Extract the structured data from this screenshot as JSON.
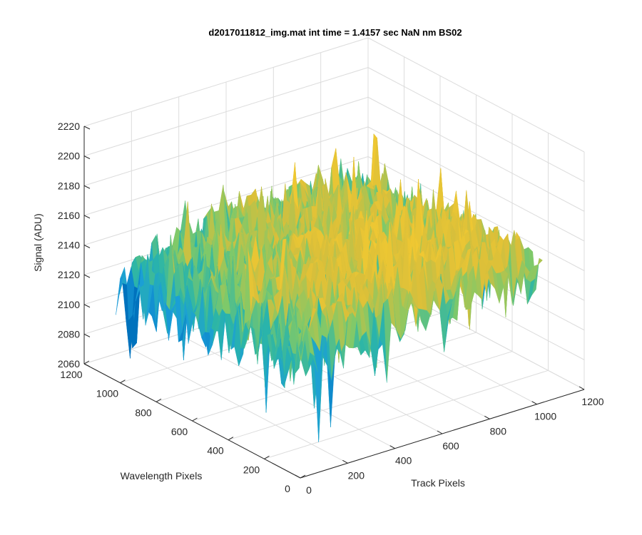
{
  "chart_data": {
    "type": "surface",
    "title": "d2017011812_img.mat int time = 1.4157 sec  NaN nm BS02",
    "xlabel": "Track Pixels",
    "ylabel": "Wavelength Pixels",
    "zlabel": "Signal (ADU)",
    "xlim": [
      0,
      1200
    ],
    "ylim": [
      0,
      1200
    ],
    "zlim": [
      2060,
      2220
    ],
    "x_ticks": [
      "0",
      "200",
      "400",
      "600",
      "800",
      "1000",
      "1200"
    ],
    "y_ticks": [
      "0",
      "200",
      "400",
      "600",
      "800",
      "1000",
      "1200"
    ],
    "z_ticks": [
      "2060",
      "2080",
      "2100",
      "2120",
      "2140",
      "2160",
      "2180",
      "2200",
      "2220"
    ],
    "data_extent": {
      "x": [
        0,
        1024
      ],
      "y": [
        0,
        1024
      ]
    },
    "surface": {
      "mean": 2140,
      "min": 2070,
      "max": 2205,
      "description_values": {
        "typical_low": 2110,
        "typical_high": 2170
      }
    },
    "colormap": [
      "#0072bd",
      "#1a9dd9",
      "#2bb5a8",
      "#7ec96a",
      "#d9bf3a",
      "#f0c832"
    ],
    "grid": true
  }
}
